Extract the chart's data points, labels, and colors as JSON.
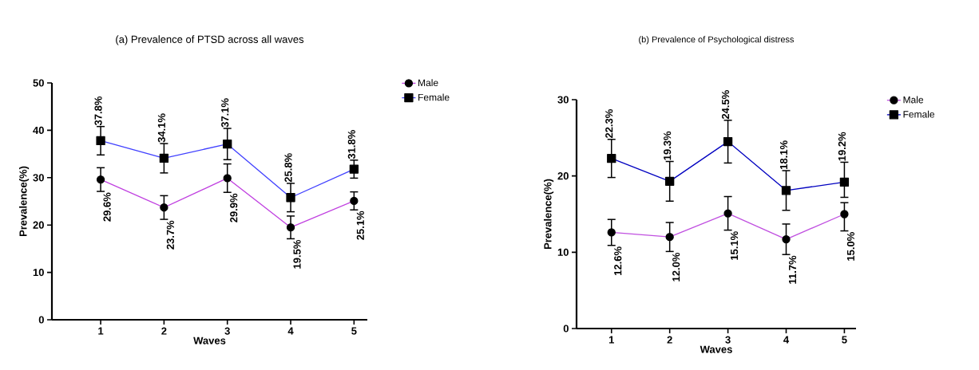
{
  "chart_data": [
    {
      "type": "line",
      "title": "(a) Prevalence of PTSD across all waves",
      "xlabel": "Waves",
      "ylabel": "Prevalence(%)",
      "categories": [
        "1",
        "2",
        "3",
        "4",
        "5"
      ],
      "ylim": [
        0,
        50
      ],
      "yticks": [
        0,
        10,
        20,
        30,
        40,
        50
      ],
      "legend": "right",
      "series": [
        {
          "name": "Male",
          "color": "#c040e0",
          "marker": "circle",
          "values": [
            29.6,
            23.7,
            29.9,
            19.5,
            25.1
          ],
          "errors": [
            2.5,
            2.5,
            3.0,
            2.4,
            1.9
          ],
          "value_labels": [
            "29.6%",
            "23.7%",
            "29.9%",
            "19.5%",
            "25.1%"
          ]
        },
        {
          "name": "Female",
          "color": "#4040ff",
          "marker": "square",
          "values": [
            37.8,
            34.1,
            37.1,
            25.8,
            31.8
          ],
          "errors": [
            3.0,
            3.1,
            3.3,
            3.0,
            1.9
          ],
          "value_labels": [
            "37.8%",
            "34.1%",
            "37.1%",
            "25.8%",
            "31.8%"
          ]
        }
      ]
    },
    {
      "type": "line",
      "title": "(b) Prevalence of Psychological distress",
      "xlabel": "Waves",
      "ylabel": "Prevalence(%)",
      "categories": [
        "1",
        "2",
        "3",
        "4",
        "5"
      ],
      "ylim": [
        0,
        30
      ],
      "yticks": [
        0,
        10,
        20,
        30
      ],
      "legend": "right",
      "series": [
        {
          "name": "Male",
          "color": "#c050e0",
          "marker": "circle",
          "values": [
            12.6,
            12.0,
            15.1,
            11.7,
            15.0
          ],
          "errors": [
            1.7,
            1.9,
            2.2,
            2.0,
            [
              12.8,
              16.5
            ]
          ],
          "value_labels": [
            "12.6%",
            "12.0%",
            "15.1%",
            "11.7%",
            "15.0%"
          ]
        },
        {
          "name": "Female",
          "color": "#0000c0",
          "marker": "square",
          "values": [
            22.3,
            19.3,
            24.5,
            18.1,
            19.2
          ],
          "errors": [
            2.5,
            2.6,
            2.8,
            2.6,
            [
              17.2,
              21.8
            ]
          ],
          "value_labels": [
            "22.3%",
            "19.3%",
            "24.5%",
            "18.1%",
            "19.2%"
          ]
        }
      ]
    }
  ]
}
